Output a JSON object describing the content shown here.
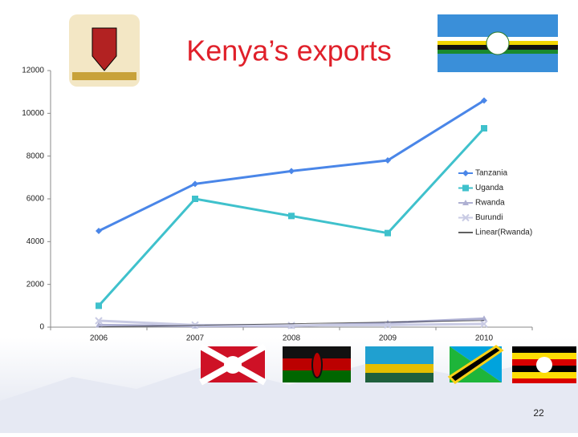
{
  "chart_data": {
    "type": "line",
    "title": "Kenya’s exports",
    "categories": [
      "2006",
      "2007",
      "2008",
      "2009",
      "2010"
    ],
    "series": [
      {
        "name": "Tanzania",
        "color": "#4a86e8",
        "marker": "diamond",
        "values": [
          4500,
          6700,
          7300,
          7800,
          10600
        ]
      },
      {
        "name": "Uganda",
        "color": "#3fc1cc",
        "marker": "square",
        "values": [
          1000,
          6000,
          5200,
          4400,
          9300
        ]
      },
      {
        "name": "Rwanda",
        "color": "#aeb0d2",
        "marker": "triangle",
        "values": [
          100,
          50,
          50,
          200,
          400
        ]
      },
      {
        "name": "Burundi",
        "color": "#c9cbe4",
        "marker": "x",
        "values": [
          300,
          100,
          80,
          100,
          150
        ]
      },
      {
        "name": "Linear(Rwanda)",
        "color": "#000000",
        "marker": "none",
        "values": [
          10,
          85,
          160,
          235,
          310
        ]
      }
    ],
    "ylim": [
      0,
      12000
    ],
    "yticks": [
      0,
      2000,
      4000,
      6000,
      8000,
      10000,
      12000
    ],
    "page_number": "22"
  }
}
